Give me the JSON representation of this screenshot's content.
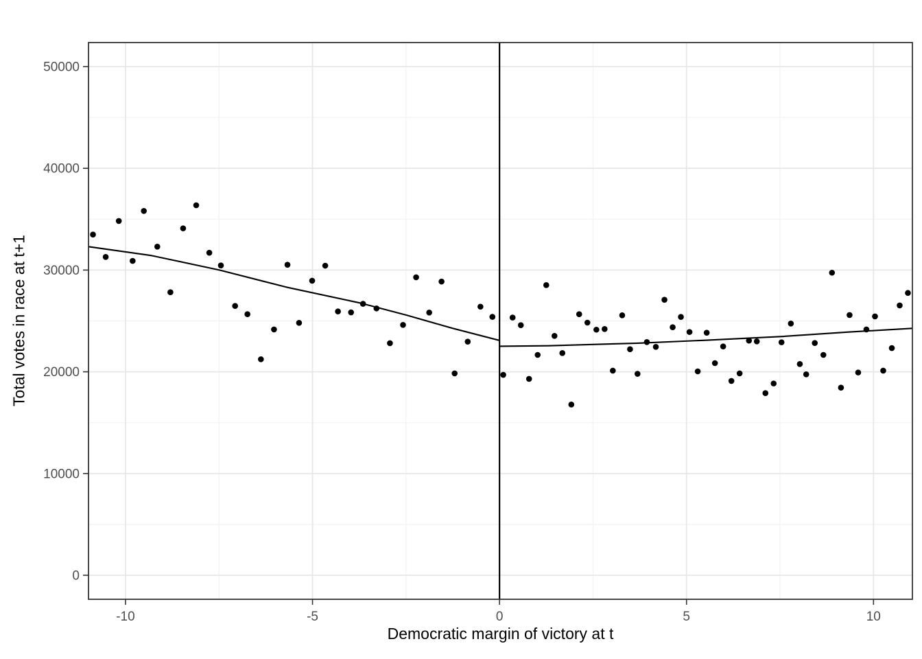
{
  "figure": {
    "background": "#ffffff",
    "panel_border_color": "#333333",
    "grid_major_color": "#e7e7e7",
    "grid_minor_color": "#f2f2f2",
    "tick_color": "#333333",
    "tick_label_color": "#4d4d4d",
    "axis_title_color": "#000000",
    "point_color": "#000000",
    "fit_line_color": "#000000",
    "cutoff_line_color": "#000000"
  },
  "chart_data": {
    "type": "scatter",
    "title": "",
    "xlabel": "Democratic margin of victory at t",
    "ylabel": "Total votes in race at t+1",
    "xlim": [
      -10.99,
      11.04
    ],
    "ylim": [
      -2362,
      52361
    ],
    "grid": true,
    "legend": "none",
    "x_ticks": {
      "values": [
        -10,
        -5,
        0,
        5,
        10
      ],
      "labels": [
        "-10",
        "-5",
        "0",
        "5",
        "10"
      ]
    },
    "x_minor_ticks": [
      -7.5,
      -2.5,
      2.5,
      7.5
    ],
    "y_ticks": {
      "values": [
        0,
        10000,
        20000,
        30000,
        40000,
        50000
      ],
      "labels": [
        "0",
        "10000",
        "20000",
        "30000",
        "40000",
        "50000"
      ]
    },
    "y_minor_ticks": [
      5000,
      15000,
      25000,
      35000,
      45000
    ],
    "cutoff_line_x": 0,
    "points": [
      [
        -10.87,
        33490
      ],
      [
        -10.53,
        31290
      ],
      [
        -10.18,
        34820
      ],
      [
        -9.81,
        30900
      ],
      [
        -9.51,
        35810
      ],
      [
        -9.15,
        32300
      ],
      [
        -8.8,
        27820
      ],
      [
        -8.46,
        34100
      ],
      [
        -8.11,
        36370
      ],
      [
        -7.76,
        31700
      ],
      [
        -7.45,
        30450
      ],
      [
        -7.07,
        26470
      ],
      [
        -6.74,
        25660
      ],
      [
        -6.38,
        21230
      ],
      [
        -6.03,
        24160
      ],
      [
        -5.67,
        30520
      ],
      [
        -5.36,
        24810
      ],
      [
        -5.01,
        28950
      ],
      [
        -4.66,
        30430
      ],
      [
        -4.32,
        25930
      ],
      [
        -3.97,
        25840
      ],
      [
        -3.65,
        26680
      ],
      [
        -3.29,
        26230
      ],
      [
        -2.93,
        22810
      ],
      [
        -2.58,
        24610
      ],
      [
        -2.23,
        29290
      ],
      [
        -1.88,
        25820
      ],
      [
        -1.55,
        28870
      ],
      [
        -1.2,
        19840
      ],
      [
        -0.85,
        22960
      ],
      [
        -0.51,
        26400
      ],
      [
        -0.19,
        25400
      ],
      [
        0.1,
        19700
      ],
      [
        0.35,
        25330
      ],
      [
        0.57,
        24580
      ],
      [
        0.79,
        19300
      ],
      [
        1.02,
        21660
      ],
      [
        1.25,
        28520
      ],
      [
        1.47,
        23530
      ],
      [
        1.68,
        21840
      ],
      [
        1.92,
        16780
      ],
      [
        2.13,
        25660
      ],
      [
        2.35,
        24830
      ],
      [
        2.59,
        24140
      ],
      [
        2.81,
        24200
      ],
      [
        3.03,
        20110
      ],
      [
        3.28,
        25550
      ],
      [
        3.49,
        22220
      ],
      [
        3.69,
        19800
      ],
      [
        3.94,
        22920
      ],
      [
        4.18,
        22450
      ],
      [
        4.41,
        27080
      ],
      [
        4.63,
        24380
      ],
      [
        4.85,
        25390
      ],
      [
        5.08,
        23910
      ],
      [
        5.3,
        20040
      ],
      [
        5.54,
        23840
      ],
      [
        5.76,
        20850
      ],
      [
        5.98,
        22490
      ],
      [
        6.2,
        19100
      ],
      [
        6.42,
        19840
      ],
      [
        6.67,
        23060
      ],
      [
        6.88,
        22990
      ],
      [
        7.11,
        17900
      ],
      [
        7.33,
        18850
      ],
      [
        7.54,
        22900
      ],
      [
        7.79,
        24740
      ],
      [
        8.03,
        20760
      ],
      [
        8.2,
        19750
      ],
      [
        8.43,
        22830
      ],
      [
        8.66,
        21660
      ],
      [
        8.89,
        29740
      ],
      [
        9.13,
        18440
      ],
      [
        9.36,
        25580
      ],
      [
        9.59,
        19930
      ],
      [
        9.81,
        24160
      ],
      [
        10.04,
        25440
      ],
      [
        10.26,
        20110
      ],
      [
        10.49,
        22330
      ],
      [
        10.7,
        26520
      ],
      [
        10.92,
        27750
      ]
    ],
    "fit_lines": [
      {
        "name": "fit-left-of-cutoff",
        "points": [
          [
            -10.99,
            32300
          ],
          [
            -9.3,
            31420
          ],
          [
            -7.5,
            30010
          ],
          [
            -5.7,
            28320
          ],
          [
            -3.7,
            26740
          ],
          [
            -2.5,
            25580
          ],
          [
            -1.25,
            24270
          ],
          [
            0,
            23080
          ]
        ]
      },
      {
        "name": "fit-right-of-cutoff",
        "points": [
          [
            0,
            22510
          ],
          [
            1.3,
            22560
          ],
          [
            3.7,
            22810
          ],
          [
            5.5,
            23100
          ],
          [
            7.6,
            23480
          ],
          [
            9.3,
            23900
          ],
          [
            11.04,
            24270
          ]
        ]
      }
    ]
  }
}
